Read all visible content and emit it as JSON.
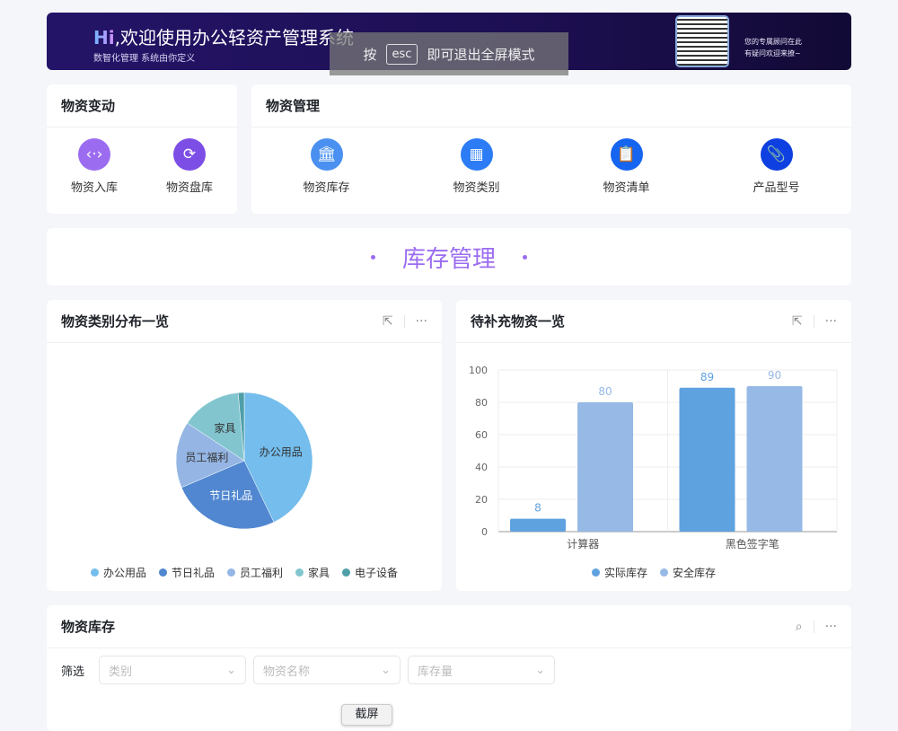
{
  "banner": {
    "hi": "Hi",
    "title": ",欢迎使用办公轻资产管理系统",
    "subtitle": "数智化管理 系统由你定义",
    "note_line1": "您的专属顾问在此",
    "note_line2": "有疑问欢迎来撩~"
  },
  "esc_overlay": {
    "prefix": "按",
    "key": "esc",
    "suffix": "即可退出全屏模式"
  },
  "movement": {
    "title": "物资变动",
    "items": [
      {
        "label": "物资入库",
        "icon": "code-arrows-icon",
        "color": "#9b6cf0"
      },
      {
        "label": "物资盘库",
        "icon": "refresh-icon",
        "color": "#7d4ee6"
      }
    ]
  },
  "management": {
    "title": "物资管理",
    "items": [
      {
        "label": "物资库存",
        "icon": "bank-icon",
        "color": "#4a90f0"
      },
      {
        "label": "物资类别",
        "icon": "grid-icon",
        "color": "#2b7cf5"
      },
      {
        "label": "物资清单",
        "icon": "clipboard-icon",
        "color": "#1565f0"
      },
      {
        "label": "产品型号",
        "icon": "paperclip-icon",
        "color": "#0e3fe0"
      }
    ]
  },
  "section_title": "库存管理",
  "pie_card": {
    "title": "物资类别分布一览"
  },
  "bar_card": {
    "title": "待补充物资一览"
  },
  "stock_card": {
    "title": "物资库存",
    "filter_label": "筛选",
    "filters": [
      {
        "placeholder": "类别"
      },
      {
        "placeholder": "物资名称"
      },
      {
        "placeholder": "库存量"
      }
    ]
  },
  "screenshot_button": "截屏",
  "chart_data": [
    {
      "type": "pie",
      "categories": [
        "办公用品",
        "节日礼品",
        "员工福利",
        "家具",
        "电子设备"
      ],
      "values": [
        30,
        18,
        11,
        10,
        1
      ],
      "colors": [
        "#74bdec",
        "#5087d0",
        "#95b6e4",
        "#82c5cf",
        "#4e9fa8"
      ],
      "legend": "bottom"
    },
    {
      "type": "bar",
      "categories": [
        "计算器",
        "黑色签字笔"
      ],
      "series": [
        {
          "name": "实际库存",
          "values": [
            8,
            89
          ],
          "color": "#5fa2e0"
        },
        {
          "name": "安全库存",
          "values": [
            80,
            90
          ],
          "color": "#96b9e6"
        }
      ],
      "ylim": [
        0,
        100
      ],
      "yticks": [
        0,
        20,
        40,
        60,
        80,
        100
      ],
      "grid": true,
      "legend": "bottom"
    }
  ]
}
